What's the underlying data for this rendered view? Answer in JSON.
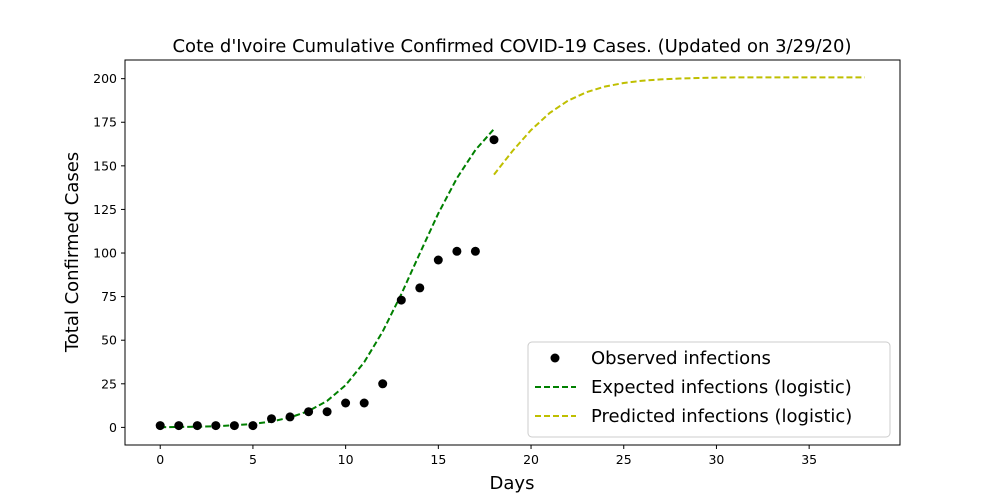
{
  "chart_data": {
    "type": "line",
    "title": "Cote d'Ivoire Cumulative Confirmed COVID-19 Cases. (Updated on 3/29/20)",
    "xlabel": "Days",
    "ylabel": "Total Confirmed Cases",
    "xlim": [
      -1.9,
      39.9
    ],
    "ylim": [
      -10.1,
      210.7
    ],
    "xticks": [
      0,
      5,
      10,
      15,
      20,
      25,
      30,
      35
    ],
    "yticks": [
      0,
      25,
      50,
      75,
      100,
      125,
      150,
      175,
      200
    ],
    "grid": false,
    "legend_position": "lower right",
    "series": [
      {
        "name": "Observed infections",
        "style": "markers",
        "color": "#000000",
        "x": [
          0,
          1,
          2,
          3,
          4,
          5,
          6,
          7,
          8,
          9,
          10,
          11,
          12,
          13,
          14,
          15,
          16,
          17,
          18
        ],
        "y": [
          1,
          1,
          1,
          1,
          1,
          1,
          5,
          6,
          9,
          9,
          14,
          14,
          25,
          73,
          80,
          96,
          101,
          101,
          165
        ]
      },
      {
        "name": "Expected infections (logistic)",
        "style": "dashed",
        "color": "#008000",
        "x": [
          0,
          1,
          2,
          3,
          4,
          5,
          6,
          7,
          8,
          9,
          10,
          11,
          12,
          13,
          14,
          15,
          16,
          17,
          18
        ],
        "y": [
          0.1,
          0.2,
          0.4,
          0.7,
          1.2,
          2.0,
          3.4,
          5.7,
          9.4,
          15.2,
          24.2,
          37.4,
          55.0,
          76.4,
          99.8,
          122.7,
          142.9,
          159.1,
          171.1
        ]
      },
      {
        "name": "Predicted infections (logistic)",
        "style": "dashed",
        "color": "#bfbf00",
        "x": [
          18,
          19,
          20,
          21,
          22,
          23,
          24,
          25,
          26,
          27,
          28,
          29,
          30,
          31,
          32,
          33,
          34,
          35,
          36,
          37,
          38
        ],
        "y": [
          145.0,
          158.5,
          170.5,
          180.3,
          187.4,
          192.3,
          195.5,
          197.5,
          198.8,
          199.6,
          200.1,
          200.4,
          200.6,
          200.7,
          200.7,
          200.7,
          200.7,
          200.7,
          200.7,
          200.7,
          200.7
        ]
      }
    ]
  }
}
